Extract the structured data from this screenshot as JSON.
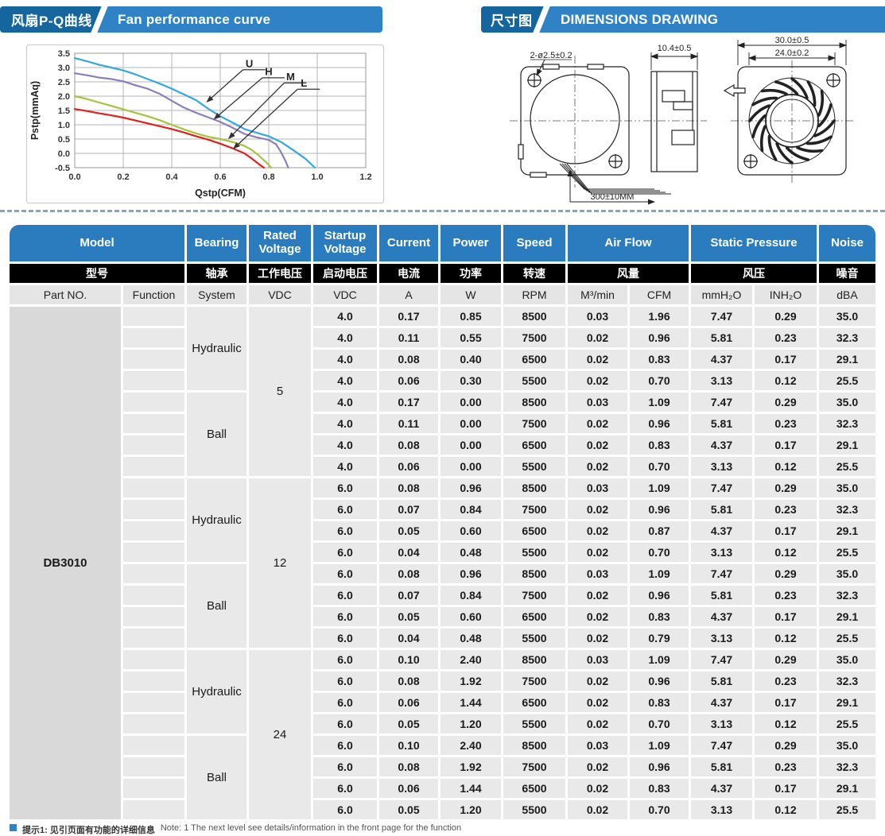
{
  "banners": {
    "fan_curve": {
      "zh": "风扇P-Q曲线",
      "en": "Fan performance curve"
    },
    "dimensions": {
      "zh": "尺寸图",
      "en": "DIMENSIONS DRAWING"
    }
  },
  "colors": {
    "banner_dark_blue": "#15659f",
    "banner_light_blue": "#2e82c5",
    "table_header_blue": "#2b7cbf",
    "table_header_black": "#000000",
    "unit_row_bg": "#e5e5e5",
    "cell_bg": "#e9e9e9",
    "part_cell_bg": "#d9d9d9"
  },
  "chart_data": {
    "type": "line",
    "xlabel": "Qstp(CFM)",
    "ylabel": "Pstp(mmAq)",
    "xlim": [
      0,
      1.2
    ],
    "ylim": [
      -0.5,
      3.5
    ],
    "xticks": [
      0.0,
      0.2,
      0.4,
      0.6,
      0.8,
      1.0,
      1.2
    ],
    "yticks": [
      -0.5,
      0.0,
      0.5,
      1.0,
      1.5,
      2.0,
      2.5,
      3.0,
      3.5
    ],
    "grid": true,
    "legend_position": "annotated-arrows",
    "series": [
      {
        "name": "U",
        "color": "#35a8e0",
        "points": [
          [
            0,
            3.33
          ],
          [
            0.05,
            3.22
          ],
          [
            0.1,
            3.1
          ],
          [
            0.15,
            3.0
          ],
          [
            0.2,
            2.9
          ],
          [
            0.25,
            2.76
          ],
          [
            0.3,
            2.6
          ],
          [
            0.35,
            2.44
          ],
          [
            0.4,
            2.26
          ],
          [
            0.45,
            2.06
          ],
          [
            0.5,
            1.86
          ],
          [
            0.55,
            1.56
          ],
          [
            0.6,
            1.3
          ],
          [
            0.65,
            1.08
          ],
          [
            0.7,
            0.85
          ],
          [
            0.75,
            0.72
          ],
          [
            0.8,
            0.6
          ],
          [
            0.85,
            0.4
          ],
          [
            0.9,
            0.12
          ],
          [
            0.95,
            -0.18
          ],
          [
            0.99,
            -0.5
          ]
        ]
      },
      {
        "name": "H",
        "color": "#8c7fb8",
        "points": [
          [
            0,
            2.8
          ],
          [
            0.05,
            2.73
          ],
          [
            0.1,
            2.65
          ],
          [
            0.15,
            2.6
          ],
          [
            0.2,
            2.52
          ],
          [
            0.25,
            2.38
          ],
          [
            0.3,
            2.26
          ],
          [
            0.35,
            2.08
          ],
          [
            0.4,
            1.84
          ],
          [
            0.45,
            1.6
          ],
          [
            0.5,
            1.42
          ],
          [
            0.55,
            1.26
          ],
          [
            0.6,
            1.1
          ],
          [
            0.65,
            0.9
          ],
          [
            0.7,
            0.68
          ],
          [
            0.75,
            0.56
          ],
          [
            0.8,
            0.47
          ],
          [
            0.83,
            0.32
          ],
          [
            0.85,
            0.05
          ],
          [
            0.87,
            -0.28
          ],
          [
            0.88,
            -0.5
          ]
        ]
      },
      {
        "name": "M",
        "color": "#a6c43c",
        "points": [
          [
            0,
            2.0
          ],
          [
            0.05,
            1.9
          ],
          [
            0.1,
            1.78
          ],
          [
            0.15,
            1.66
          ],
          [
            0.2,
            1.54
          ],
          [
            0.25,
            1.42
          ],
          [
            0.3,
            1.3
          ],
          [
            0.35,
            1.16
          ],
          [
            0.4,
            1.0
          ],
          [
            0.45,
            0.84
          ],
          [
            0.5,
            0.7
          ],
          [
            0.55,
            0.58
          ],
          [
            0.6,
            0.5
          ],
          [
            0.65,
            0.4
          ],
          [
            0.7,
            0.26
          ],
          [
            0.73,
            0.12
          ],
          [
            0.76,
            -0.08
          ],
          [
            0.79,
            -0.32
          ],
          [
            0.81,
            -0.5
          ]
        ]
      },
      {
        "name": "L",
        "color": "#e0201c",
        "points": [
          [
            0,
            1.55
          ],
          [
            0.05,
            1.48
          ],
          [
            0.1,
            1.4
          ],
          [
            0.15,
            1.33
          ],
          [
            0.2,
            1.25
          ],
          [
            0.25,
            1.15
          ],
          [
            0.3,
            1.05
          ],
          [
            0.35,
            0.95
          ],
          [
            0.4,
            0.85
          ],
          [
            0.45,
            0.73
          ],
          [
            0.5,
            0.6
          ],
          [
            0.55,
            0.48
          ],
          [
            0.6,
            0.34
          ],
          [
            0.65,
            0.18
          ],
          [
            0.7,
            0.0
          ],
          [
            0.73,
            -0.18
          ],
          [
            0.76,
            -0.38
          ],
          [
            0.78,
            -0.5
          ]
        ]
      }
    ],
    "annotations": [
      {
        "text": "U",
        "x": 0.72,
        "y": 3.02,
        "tip_x": 0.545,
        "tip_y": 1.8
      },
      {
        "text": "H",
        "x": 0.8,
        "y": 2.74,
        "tip_x": 0.575,
        "tip_y": 1.2
      },
      {
        "text": "M",
        "x": 0.89,
        "y": 2.56,
        "tip_x": 0.635,
        "tip_y": 0.52
      },
      {
        "text": "L",
        "x": 0.945,
        "y": 2.34,
        "tip_x": 0.655,
        "tip_y": 0.17
      }
    ]
  },
  "dimensions": {
    "hole_label": "2-ø2.5±0.2",
    "depth_label": "10.4±0.5",
    "outer_label": "30.0±0.5",
    "inner_label": "24.0±0.2",
    "wire_label": "300±10MM"
  },
  "table": {
    "header_en": [
      "Model",
      "Bearing",
      "Rated Voltage",
      "Startup Voltage",
      "Current",
      "Power",
      "Speed",
      "Air Flow",
      "Static Pressure",
      "Noise"
    ],
    "header_zh": [
      "型号",
      "轴承",
      "工作电压",
      "启动电压",
      "电流",
      "功率",
      "转速",
      "风量",
      "风压",
      "噪音"
    ],
    "units": [
      "Part NO.",
      "Function",
      "System",
      "VDC",
      "VDC",
      "A",
      "W",
      "RPM",
      "M³/min",
      "CFM",
      "mmH₂O",
      "INH₂O",
      "dBA"
    ],
    "part_no": "DB3010",
    "groups": [
      {
        "rated_voltage": "5",
        "bearings": [
          {
            "system": "Hydraulic",
            "rows": [
              [
                "4.0",
                "0.17",
                "0.85",
                "8500",
                "0.03",
                "1.96",
                "7.47",
                "0.29",
                "35.0"
              ],
              [
                "4.0",
                "0.11",
                "0.55",
                "7500",
                "0.02",
                "0.96",
                "5.81",
                "0.23",
                "32.3"
              ],
              [
                "4.0",
                "0.08",
                "0.40",
                "6500",
                "0.02",
                "0.83",
                "4.37",
                "0.17",
                "29.1"
              ],
              [
                "4.0",
                "0.06",
                "0.30",
                "5500",
                "0.02",
                "0.70",
                "3.13",
                "0.12",
                "25.5"
              ]
            ]
          },
          {
            "system": "Ball",
            "rows": [
              [
                "4.0",
                "0.17",
                "0.00",
                "8500",
                "0.03",
                "1.09",
                "7.47",
                "0.29",
                "35.0"
              ],
              [
                "4.0",
                "0.11",
                "0.00",
                "7500",
                "0.02",
                "0.96",
                "5.81",
                "0.23",
                "32.3"
              ],
              [
                "4.0",
                "0.08",
                "0.00",
                "6500",
                "0.02",
                "0.83",
                "4.37",
                "0.17",
                "29.1"
              ],
              [
                "4.0",
                "0.06",
                "0.00",
                "5500",
                "0.02",
                "0.70",
                "3.13",
                "0.12",
                "25.5"
              ]
            ]
          }
        ]
      },
      {
        "rated_voltage": "12",
        "bearings": [
          {
            "system": "Hydraulic",
            "rows": [
              [
                "6.0",
                "0.08",
                "0.96",
                "8500",
                "0.03",
                "1.09",
                "7.47",
                "0.29",
                "35.0"
              ],
              [
                "6.0",
                "0.07",
                "0.84",
                "7500",
                "0.02",
                "0.96",
                "5.81",
                "0.23",
                "32.3"
              ],
              [
                "6.0",
                "0.05",
                "0.60",
                "6500",
                "0.02",
                "0.87",
                "4.37",
                "0.17",
                "29.1"
              ],
              [
                "6.0",
                "0.04",
                "0.48",
                "5500",
                "0.02",
                "0.70",
                "3.13",
                "0.12",
                "25.5"
              ]
            ]
          },
          {
            "system": "Ball",
            "rows": [
              [
                "6.0",
                "0.08",
                "0.96",
                "8500",
                "0.03",
                "1.09",
                "7.47",
                "0.29",
                "35.0"
              ],
              [
                "6.0",
                "0.07",
                "0.84",
                "7500",
                "0.02",
                "0.96",
                "5.81",
                "0.23",
                "32.3"
              ],
              [
                "6.0",
                "0.05",
                "0.60",
                "6500",
                "0.02",
                "0.83",
                "4.37",
                "0.17",
                "29.1"
              ],
              [
                "6.0",
                "0.04",
                "0.48",
                "5500",
                "0.02",
                "0.79",
                "3.13",
                "0.12",
                "25.5"
              ]
            ]
          }
        ]
      },
      {
        "rated_voltage": "24",
        "bearings": [
          {
            "system": "Hydraulic",
            "rows": [
              [
                "6.0",
                "0.10",
                "2.40",
                "8500",
                "0.03",
                "1.09",
                "7.47",
                "0.29",
                "35.0"
              ],
              [
                "6.0",
                "0.08",
                "1.92",
                "7500",
                "0.02",
                "0.96",
                "5.81",
                "0.23",
                "32.3"
              ],
              [
                "6.0",
                "0.06",
                "1.44",
                "6500",
                "0.02",
                "0.83",
                "4.37",
                "0.17",
                "29.1"
              ],
              [
                "6.0",
                "0.05",
                "1.20",
                "5500",
                "0.02",
                "0.70",
                "3.13",
                "0.12",
                "25.5"
              ]
            ]
          },
          {
            "system": "Ball",
            "rows": [
              [
                "6.0",
                "0.10",
                "2.40",
                "8500",
                "0.03",
                "1.09",
                "7.47",
                "0.29",
                "35.0"
              ],
              [
                "6.0",
                "0.08",
                "1.92",
                "7500",
                "0.02",
                "0.96",
                "5.81",
                "0.23",
                "32.3"
              ],
              [
                "6.0",
                "0.06",
                "1.44",
                "6500",
                "0.02",
                "0.83",
                "4.37",
                "0.17",
                "29.1"
              ],
              [
                "6.0",
                "0.05",
                "1.20",
                "5500",
                "0.02",
                "0.70",
                "3.13",
                "0.12",
                "25.5"
              ]
            ]
          }
        ]
      }
    ]
  },
  "footnote": {
    "zh": "提示1: 见引页面有功能的详细信息",
    "en": "Note: 1 The next level see details/information in the front page for the function"
  }
}
